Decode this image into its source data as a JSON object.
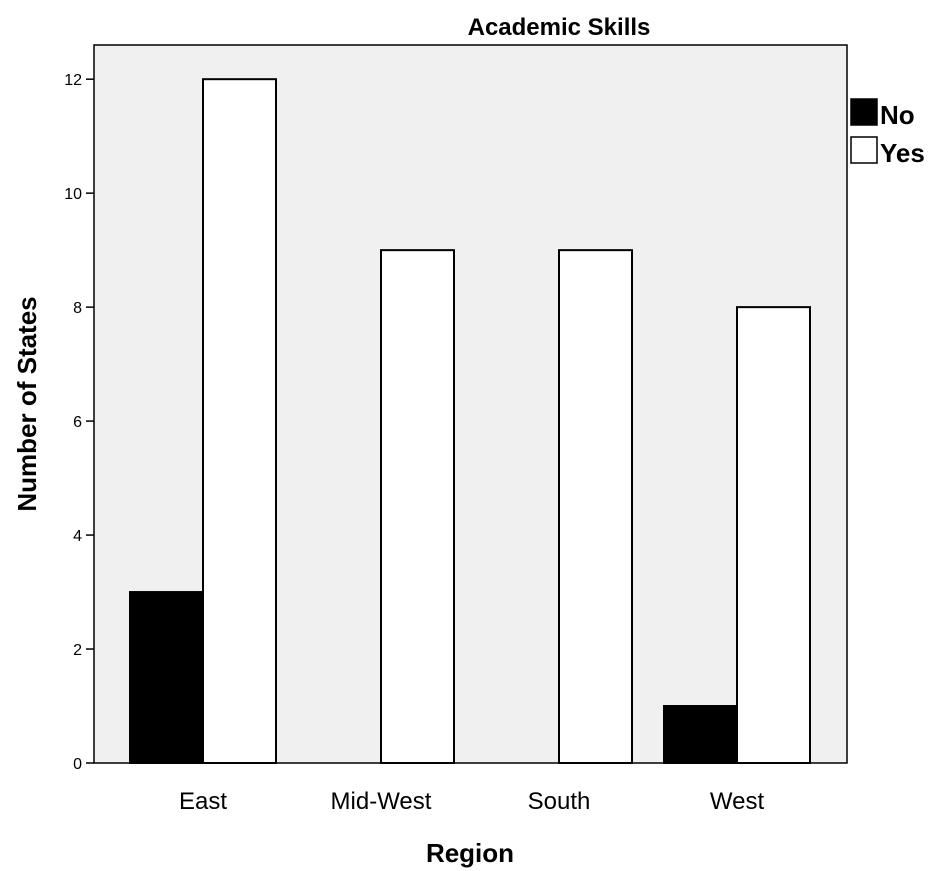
{
  "chart_data": {
    "type": "bar",
    "title": "Academic Skills",
    "xlabel": "Region",
    "ylabel": "Number of States",
    "categories": [
      "East",
      "Mid-West",
      "South",
      "West"
    ],
    "series": [
      {
        "name": "No",
        "values": [
          3,
          0,
          0,
          1
        ],
        "color": "#000000"
      },
      {
        "name": "Yes",
        "values": [
          12,
          9,
          9,
          8
        ],
        "color": "#ffffff"
      }
    ],
    "ylim": [
      0,
      12.6
    ],
    "yticks": [
      0,
      2,
      4,
      6,
      8,
      10,
      12
    ],
    "grid": false,
    "legend_position": "right",
    "plot_background": "#f0f0f0"
  }
}
